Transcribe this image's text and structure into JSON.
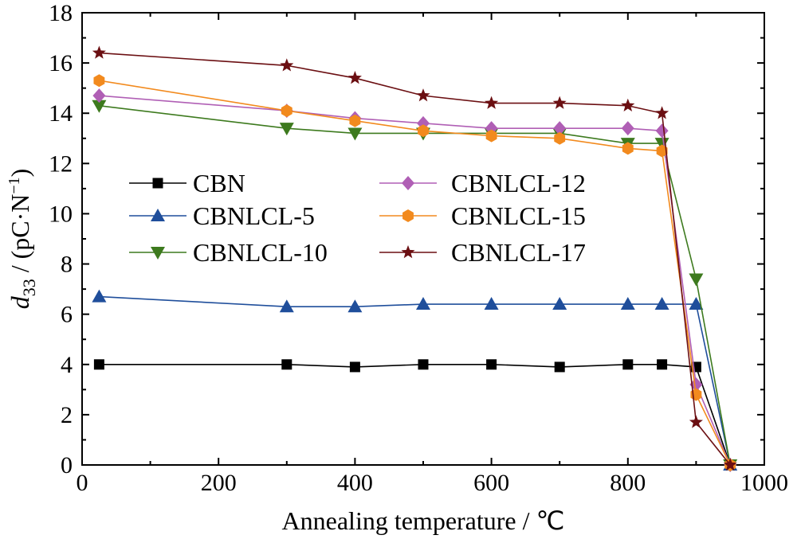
{
  "chart_data": {
    "type": "line",
    "xlabel": "Annealing temperature / ℃",
    "ylabel_symbol": "d",
    "ylabel_subscript": "33",
    "ylabel_unit": " / (pC·N",
    "ylabel_sup": "−1",
    "ylabel_close": ")",
    "xlim": [
      0,
      1000
    ],
    "ylim": [
      0,
      18
    ],
    "xticks": [
      0,
      200,
      400,
      600,
      800,
      1000
    ],
    "yticks": [
      0,
      2,
      4,
      6,
      8,
      10,
      12,
      14,
      16,
      18
    ],
    "xtick_labels": [
      "0",
      "200",
      "400",
      "600",
      "800",
      "1000"
    ],
    "ytick_labels": [
      "0",
      "2",
      "4",
      "6",
      "8",
      "10",
      "12",
      "14",
      "16",
      "18"
    ],
    "grid": false,
    "legend_position": "middle-left, two columns",
    "series": [
      {
        "name": "CBN",
        "color": "#000000",
        "marker": "square",
        "x": [
          25,
          300,
          400,
          500,
          600,
          700,
          800,
          850,
          900,
          950
        ],
        "y": [
          4.0,
          4.0,
          3.9,
          4.0,
          4.0,
          3.9,
          4.0,
          4.0,
          3.9,
          0.0
        ]
      },
      {
        "name": "CBNLCL-5",
        "color": "#1f4e9b",
        "marker": "triangle-up",
        "x": [
          25,
          300,
          400,
          500,
          600,
          700,
          800,
          850,
          900,
          950
        ],
        "y": [
          6.7,
          6.3,
          6.3,
          6.4,
          6.4,
          6.4,
          6.4,
          6.4,
          6.4,
          0.0
        ]
      },
      {
        "name": "CBNLCL-10",
        "color": "#3d7a1e",
        "marker": "triangle-down",
        "x": [
          25,
          300,
          400,
          500,
          600,
          700,
          800,
          850,
          900,
          950
        ],
        "y": [
          14.3,
          13.4,
          13.2,
          13.2,
          13.2,
          13.2,
          12.8,
          12.8,
          7.4,
          0.0
        ]
      },
      {
        "name": "CBNLCL-12",
        "color": "#b05fb5",
        "marker": "diamond",
        "x": [
          25,
          300,
          400,
          500,
          600,
          700,
          800,
          850,
          900,
          950
        ],
        "y": [
          14.7,
          14.1,
          13.8,
          13.6,
          13.4,
          13.4,
          13.4,
          13.3,
          3.2,
          0.0
        ]
      },
      {
        "name": "CBNLCL-15",
        "color": "#f28a1e",
        "marker": "hexagon",
        "x": [
          25,
          300,
          400,
          500,
          600,
          700,
          800,
          850,
          900,
          950
        ],
        "y": [
          15.3,
          14.1,
          13.7,
          13.3,
          13.1,
          13.0,
          12.6,
          12.5,
          2.8,
          0.0
        ]
      },
      {
        "name": "CBNLCL-17",
        "color": "#6b0f12",
        "marker": "star",
        "x": [
          25,
          300,
          400,
          500,
          600,
          700,
          800,
          850,
          900,
          950
        ],
        "y": [
          16.4,
          15.9,
          15.4,
          14.7,
          14.4,
          14.4,
          14.3,
          14.0,
          1.7,
          0.0
        ]
      }
    ]
  }
}
